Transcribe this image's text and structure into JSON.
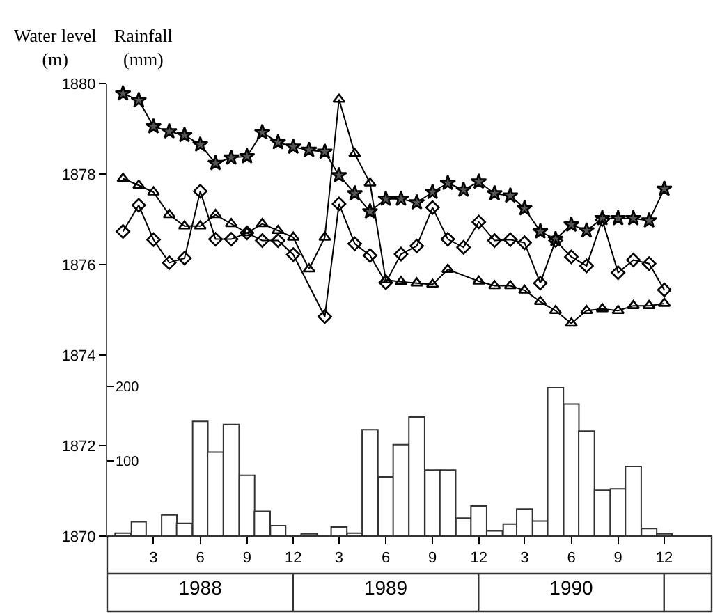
{
  "chart_data": {
    "type": "line",
    "ylabel": "Water level\n(m)",
    "y2label": "Rainfall\n(mm)",
    "x": [
      "1988-01-15",
      "1988-02-15",
      "1988-03-15",
      "1988-04-15",
      "1988-05-15",
      "1988-06-15",
      "1988-07-15",
      "1988-08-15",
      "1988-09-15",
      "1988-10-15",
      "1988-11-15",
      "1988-12-15",
      "1989-01-15",
      "1989-02-15",
      "1989-03-15",
      "1989-04-15",
      "1989-05-15",
      "1989-06-15",
      "1989-07-15",
      "1989-08-15",
      "1989-09-15",
      "1989-10-15",
      "1989-11-15",
      "1989-12-15",
      "1990-01-15",
      "1990-02-15",
      "1990-03-15",
      "1990-04-15",
      "1990-05-15",
      "1990-06-15",
      "1990-07-15",
      "1990-08-15",
      "1990-09-15",
      "1990-10-15",
      "1990-11-15",
      "1990-12-15"
    ],
    "xlim": [
      "1987-12-15",
      "1991-03-18"
    ],
    "xticks": [
      {
        "value": "1988-03-15",
        "label": "3"
      },
      {
        "value": "1988-06-15",
        "label": "6"
      },
      {
        "value": "1988-09-15",
        "label": "9"
      },
      {
        "value": "1988-12-15",
        "label": "12"
      },
      {
        "value": "1989-03-15",
        "label": "3"
      },
      {
        "value": "1989-06-15",
        "label": "6"
      },
      {
        "value": "1989-09-15",
        "label": "9"
      },
      {
        "value": "1989-12-15",
        "label": "12"
      },
      {
        "value": "1990-03-15",
        "label": "3"
      },
      {
        "value": "1990-06-15",
        "label": "6"
      },
      {
        "value": "1990-09-15",
        "label": "9"
      },
      {
        "value": "1990-12-15",
        "label": "12"
      }
    ],
    "x2lim": [
      "1987-12-15",
      "1991-03-18"
    ],
    "x2ticks": [
      {
        "value": "1988-06-15",
        "label": "1988"
      },
      {
        "value": "1989-06-15",
        "label": "1989"
      },
      {
        "value": "1990-06-15",
        "label": "1990"
      }
    ],
    "ylim": [
      1870,
      1880
    ],
    "yticks": [
      1870,
      1872,
      1874,
      1876,
      1878,
      1880
    ],
    "y2lim": [
      0,
      604
    ],
    "y2ticks": [
      100,
      200
    ],
    "grid": false,
    "line_style": "solid",
    "series": [
      {
        "type": "bar",
        "axis": "y2",
        "color": "#ffffff",
        "values": [
          4,
          19,
          null,
          28,
          17,
          153,
          112,
          149,
          81,
          33,
          14,
          null,
          3,
          null,
          12,
          4,
          142,
          79,
          122,
          159,
          88,
          88,
          24,
          40,
          7,
          16,
          36,
          20,
          198,
          176,
          140,
          61,
          63,
          93,
          10,
          3
        ]
      },
      {
        "marker": "star",
        "color": "#000000",
        "values": [
          1879.78,
          1879.63,
          1879.05,
          1878.94,
          1878.86,
          1878.65,
          1878.24,
          1878.36,
          1878.39,
          1878.92,
          1878.7,
          1878.6,
          1878.53,
          1878.49,
          1877.97,
          1877.57,
          1877.17,
          1877.45,
          1877.45,
          1877.37,
          1877.6,
          1877.8,
          1877.65,
          1877.83,
          1877.57,
          1877.52,
          1877.24,
          1876.73,
          1876.56,
          1876.88,
          1876.75,
          1877.02,
          1877.02,
          1877.02,
          1876.97,
          1877.67
        ]
      },
      {
        "marker": "triangle",
        "color": "#000000",
        "values": [
          1877.9,
          1877.75,
          1877.6,
          1877.1,
          1876.85,
          1876.85,
          1877.1,
          1876.9,
          1876.7,
          1876.9,
          1876.75,
          1876.6,
          1875.9,
          1876.6,
          1879.65,
          1878.45,
          1877.8,
          1875.66,
          1875.62,
          1875.59,
          1875.56,
          1875.89,
          null,
          1875.63,
          1875.53,
          1875.53,
          1875.43,
          1875.18,
          1874.98,
          1874.7,
          1874.98,
          1875.02,
          1874.98,
          1875.09,
          1875.09,
          1875.14
        ]
      },
      {
        "marker": "diamond",
        "color": "#000000",
        "values": [
          1876.73,
          1877.31,
          1876.55,
          1876.04,
          1876.14,
          1877.62,
          1876.56,
          1876.56,
          1876.7,
          1876.53,
          1876.53,
          1876.22,
          null,
          1874.85,
          1877.34,
          1876.46,
          1876.2,
          1875.6,
          1876.23,
          1876.41,
          1877.26,
          1876.56,
          1876.38,
          1876.94,
          1876.53,
          1876.55,
          1876.48,
          1875.59,
          1876.53,
          1876.17,
          1875.97,
          1876.99,
          1875.82,
          1876.1,
          1876.02,
          1875.44
        ]
      }
    ]
  }
}
